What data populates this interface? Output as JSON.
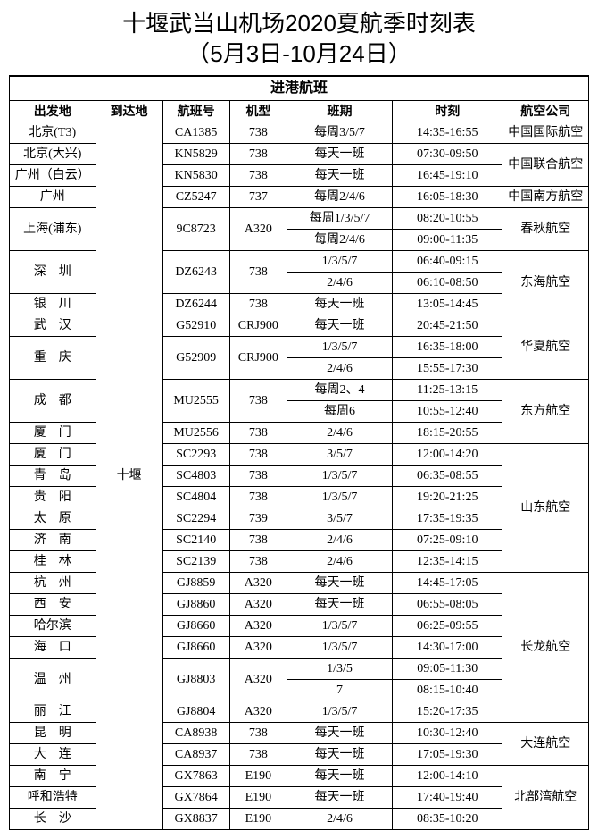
{
  "title_line1": "十堰武当山机场2020夏航季时刻表",
  "title_line2": "（5月3日-10月24日）",
  "section": "进港航班",
  "headers": {
    "origin": "出发地",
    "dest": "到达地",
    "flight": "航班号",
    "aircraft": "机型",
    "days": "班期",
    "time": "时刻",
    "airline": "航空公司"
  },
  "dest_merged": "十堰",
  "rows": [
    {
      "origin": "北京(T3)",
      "flight": "CA1385",
      "ac": "738",
      "days": "每周3/5/7",
      "time": "14:35-16:55",
      "airline": "中国国际航空",
      "al_rows": 1
    },
    {
      "origin": "北京(大兴)",
      "flight": "KN5829",
      "ac": "738",
      "days": "每天一班",
      "time": "07:30-09:50",
      "airline": "中国联合航空",
      "al_rows": 2
    },
    {
      "origin": "广州（白云）",
      "flight": "KN5830",
      "ac": "738",
      "days": "每天一班",
      "time": "16:45-19:10"
    },
    {
      "origin": "广州",
      "flight": "CZ5247",
      "ac": "737",
      "days": "每周2/4/6",
      "time": "16:05-18:30",
      "airline": "中国南方航空",
      "al_rows": 1
    },
    {
      "origin": "上海(浦东)",
      "or_rows": 2,
      "flight": "9C8723",
      "ac": "A320",
      "fl_rows": 2,
      "days": "每周1/3/5/7",
      "time": "08:20-10:55",
      "airline": "春秋航空",
      "al_rows": 2
    },
    {
      "days": "每周2/4/6",
      "time": "09:00-11:35"
    },
    {
      "origin": "深　圳",
      "or_rows": 2,
      "flight": "DZ6243",
      "ac": "738",
      "fl_rows": 2,
      "days": "1/3/5/7",
      "time": "06:40-09:15",
      "airline": "东海航空",
      "al_rows": 3
    },
    {
      "days": "2/4/6",
      "time": "06:10-08:50"
    },
    {
      "origin": "银　川",
      "flight": "DZ6244",
      "ac": "738",
      "days": "每天一班",
      "time": "13:05-14:45"
    },
    {
      "origin": "武　汉",
      "flight": "G52910",
      "ac": "CRJ900",
      "days": "每天一班",
      "time": "20:45-21:50",
      "airline": "华夏航空",
      "al_rows": 3
    },
    {
      "origin": "重　庆",
      "or_rows": 2,
      "flight": "G52909",
      "ac": "CRJ900",
      "fl_rows": 2,
      "days": "1/3/5/7",
      "time": "16:35-18:00"
    },
    {
      "days": "2/4/6",
      "time": "15:55-17:30"
    },
    {
      "origin": "成　都",
      "or_rows": 2,
      "flight": "MU2555",
      "ac": "738",
      "fl_rows": 2,
      "days": "每周2、4",
      "time": "11:25-13:15",
      "airline": "东方航空",
      "al_rows": 3
    },
    {
      "days": "每周6",
      "time": "10:55-12:40"
    },
    {
      "origin": "厦　门",
      "flight": "MU2556",
      "ac": "738",
      "days": "2/4/6",
      "time": "18:15-20:55"
    },
    {
      "origin": "厦　门",
      "flight": "SC2293",
      "ac": "738",
      "days": "3/5/7",
      "time": "12:00-14:20",
      "airline": "山东航空",
      "al_rows": 6
    },
    {
      "origin": "青　岛",
      "flight": "SC4803",
      "ac": "738",
      "days": "1/3/5/7",
      "time": "06:35-08:55"
    },
    {
      "origin": "贵　阳",
      "flight": "SC4804",
      "ac": "738",
      "days": "1/3/5/7",
      "time": "19:20-21:25"
    },
    {
      "origin": "太　原",
      "flight": "SC2294",
      "ac": "739",
      "days": "3/5/7",
      "time": "17:35-19:35"
    },
    {
      "origin": "济　南",
      "flight": "SC2140",
      "ac": "738",
      "days": "2/4/6",
      "time": "07:25-09:10"
    },
    {
      "origin": "桂　林",
      "flight": "SC2139",
      "ac": "738",
      "days": "2/4/6",
      "time": "12:35-14:15"
    },
    {
      "origin": "杭　州",
      "flight": "GJ8859",
      "ac": "A320",
      "days": "每天一班",
      "time": "14:45-17:05",
      "airline": "长龙航空",
      "al_rows": 7
    },
    {
      "origin": "西　安",
      "flight": "GJ8860",
      "ac": "A320",
      "days": "每天一班",
      "time": "06:55-08:05"
    },
    {
      "origin": "哈尔滨",
      "flight": "GJ8660",
      "ac": "A320",
      "days": "1/3/5/7",
      "time": "06:25-09:55"
    },
    {
      "origin": "海　口",
      "flight": "GJ8660",
      "ac": "A320",
      "days": "1/3/5/7",
      "time": "14:30-17:00"
    },
    {
      "origin": "温　州",
      "or_rows": 2,
      "flight": "GJ8803",
      "ac": "A320",
      "fl_rows": 2,
      "days": "1/3/5",
      "time": "09:05-11:30"
    },
    {
      "days": "7",
      "time": "08:15-10:40"
    },
    {
      "origin": "丽　江",
      "flight": "GJ8804",
      "ac": "A320",
      "days": "1/3/5/7",
      "time": "15:20-17:35"
    },
    {
      "origin": "昆　明",
      "flight": "CA8938",
      "ac": "738",
      "days": "每天一班",
      "time": "10:30-12:40",
      "airline": "大连航空",
      "al_rows": 2
    },
    {
      "origin": "大　连",
      "flight": "CA8937",
      "ac": "738",
      "days": "每天一班",
      "time": "17:05-19:30"
    },
    {
      "origin": "南　宁",
      "flight": "GX7863",
      "ac": "E190",
      "days": "每天一班",
      "time": "12:00-14:10",
      "airline": "北部湾航空",
      "al_rows": 3
    },
    {
      "origin": "呼和浩特",
      "flight": "GX7864",
      "ac": "E190",
      "days": "每天一班",
      "time": "17:40-19:40"
    },
    {
      "origin": "长　沙",
      "flight": "GX8837",
      "ac": "E190",
      "days": "2/4/6",
      "time": "08:35-10:20"
    }
  ]
}
